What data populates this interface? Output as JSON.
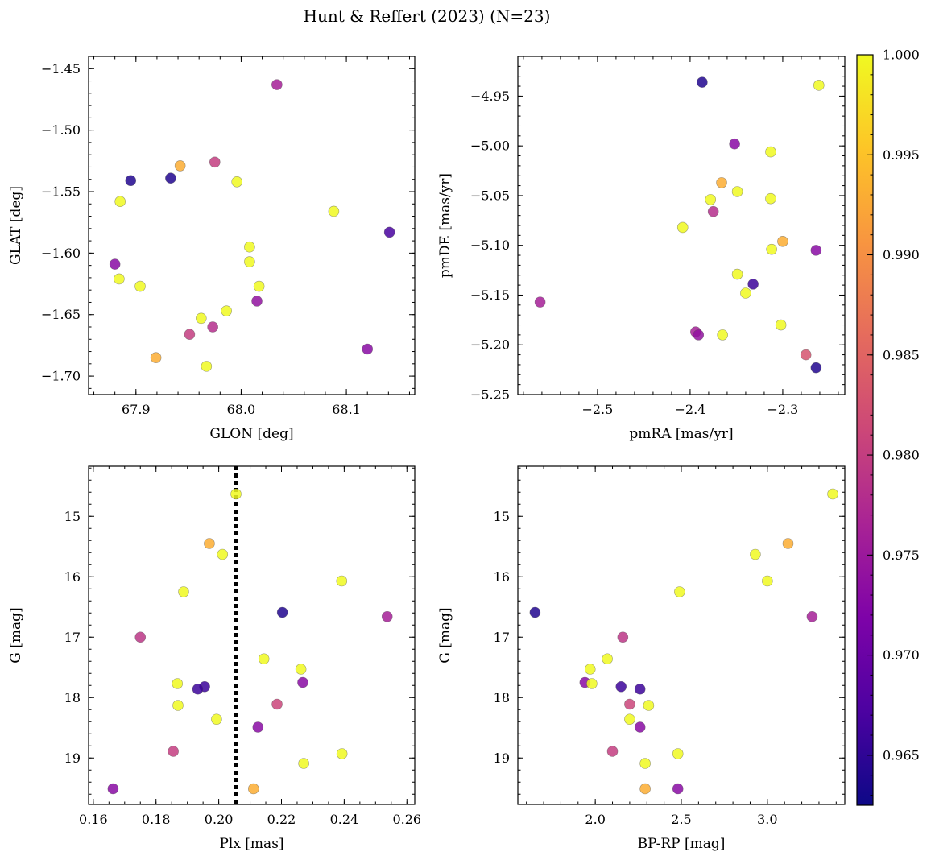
{
  "title": "Hunt & Reffert (2023) (N=23)",
  "colorbar": {
    "min": 0.9625,
    "max": 1.0,
    "ticks": [
      0.965,
      0.97,
      0.975,
      0.98,
      0.985,
      0.99,
      0.995,
      1.0
    ],
    "tick_labels": [
      "0.965",
      "0.970",
      "0.975",
      "0.980",
      "0.985",
      "0.990",
      "0.995",
      "1.000"
    ],
    "colormap": "plasma"
  },
  "chart_data": [
    {
      "type": "scatter",
      "id": "glon-glat",
      "xlabel": "GLON [deg]",
      "ylabel": "GLAT [deg]",
      "xlim": [
        67.855,
        68.165
      ],
      "ylim": [
        -1.715,
        -1.44
      ],
      "invert_y": false,
      "xticks": [
        67.9,
        68.0,
        68.1
      ],
      "xtick_labels": [
        "67.9",
        "68.0",
        "68.1"
      ],
      "yticks": [
        -1.45,
        -1.5,
        -1.55,
        -1.6,
        -1.65,
        -1.7
      ],
      "ytick_labels": [
        "−1.45",
        "−1.50",
        "−1.55",
        "−1.60",
        "−1.65",
        "−1.70"
      ],
      "xminor": 0.02,
      "yminor": 0.01,
      "points": [
        {
          "x": 68.034,
          "y": -1.463,
          "c": 0.976
        },
        {
          "x": 67.942,
          "y": -1.529,
          "c": 0.993
        },
        {
          "x": 67.975,
          "y": -1.526,
          "c": 0.98
        },
        {
          "x": 67.895,
          "y": -1.541,
          "c": 0.964
        },
        {
          "x": 67.933,
          "y": -1.539,
          "c": 0.964
        },
        {
          "x": 67.996,
          "y": -1.542,
          "c": 1.0
        },
        {
          "x": 67.885,
          "y": -1.558,
          "c": 1.0
        },
        {
          "x": 68.088,
          "y": -1.566,
          "c": 1.0
        },
        {
          "x": 68.141,
          "y": -1.583,
          "c": 0.967
        },
        {
          "x": 68.008,
          "y": -1.595,
          "c": 1.0
        },
        {
          "x": 67.88,
          "y": -1.609,
          "c": 0.973
        },
        {
          "x": 68.008,
          "y": -1.607,
          "c": 1.0
        },
        {
          "x": 67.884,
          "y": -1.621,
          "c": 1.0
        },
        {
          "x": 67.904,
          "y": -1.627,
          "c": 1.0
        },
        {
          "x": 68.017,
          "y": -1.627,
          "c": 1.0
        },
        {
          "x": 68.015,
          "y": -1.639,
          "c": 0.974
        },
        {
          "x": 67.986,
          "y": -1.647,
          "c": 1.0
        },
        {
          "x": 67.962,
          "y": -1.653,
          "c": 1.0
        },
        {
          "x": 67.973,
          "y": -1.66,
          "c": 0.978
        },
        {
          "x": 67.951,
          "y": -1.666,
          "c": 0.98
        },
        {
          "x": 68.12,
          "y": -1.678,
          "c": 0.973
        },
        {
          "x": 67.919,
          "y": -1.685,
          "c": 0.993
        },
        {
          "x": 67.967,
          "y": -1.692,
          "c": 1.0
        }
      ]
    },
    {
      "type": "scatter",
      "id": "pmra-pmde",
      "xlabel": "pmRA [mas/yr]",
      "ylabel": "pmDE [mas/yr]",
      "xlim": [
        -2.586,
        -2.233
      ],
      "ylim": [
        -5.25,
        -4.91
      ],
      "invert_y": false,
      "xticks": [
        -2.5,
        -2.4,
        -2.3
      ],
      "xtick_labels": [
        "−2.5",
        "−2.4",
        "−2.3"
      ],
      "yticks": [
        -4.95,
        -5.0,
        -5.05,
        -5.1,
        -5.15,
        -5.2,
        -5.25
      ],
      "ytick_labels": [
        "−4.95",
        "−5.00",
        "−5.05",
        "−5.10",
        "−5.15",
        "−5.20",
        "−5.25"
      ],
      "xminor": 0.02,
      "yminor": 0.01,
      "points": [
        {
          "x": -2.387,
          "y": -4.936,
          "c": 0.964
        },
        {
          "x": -2.261,
          "y": -4.939,
          "c": 1.0
        },
        {
          "x": -2.352,
          "y": -4.998,
          "c": 0.973
        },
        {
          "x": -2.313,
          "y": -5.006,
          "c": 1.0
        },
        {
          "x": -2.366,
          "y": -5.037,
          "c": 0.993
        },
        {
          "x": -2.349,
          "y": -5.046,
          "c": 1.0
        },
        {
          "x": -2.378,
          "y": -5.054,
          "c": 1.0
        },
        {
          "x": -2.313,
          "y": -5.053,
          "c": 1.0
        },
        {
          "x": -2.375,
          "y": -5.066,
          "c": 0.978
        },
        {
          "x": -2.408,
          "y": -5.082,
          "c": 1.0
        },
        {
          "x": -2.3,
          "y": -5.096,
          "c": 0.993
        },
        {
          "x": -2.312,
          "y": -5.104,
          "c": 1.0
        },
        {
          "x": -2.264,
          "y": -5.105,
          "c": 0.973
        },
        {
          "x": -2.349,
          "y": -5.129,
          "c": 1.0
        },
        {
          "x": -2.332,
          "y": -5.139,
          "c": 0.966
        },
        {
          "x": -2.34,
          "y": -5.148,
          "c": 1.0
        },
        {
          "x": -2.562,
          "y": -5.157,
          "c": 0.976
        },
        {
          "x": -2.302,
          "y": -5.18,
          "c": 1.0
        },
        {
          "x": -2.394,
          "y": -5.187,
          "c": 0.976
        },
        {
          "x": -2.391,
          "y": -5.19,
          "c": 0.974
        },
        {
          "x": -2.365,
          "y": -5.19,
          "c": 1.0
        },
        {
          "x": -2.275,
          "y": -5.21,
          "c": 0.983
        },
        {
          "x": -2.264,
          "y": -5.223,
          "c": 0.964
        }
      ]
    },
    {
      "type": "scatter",
      "id": "plx-g",
      "xlabel": "Plx [mas]",
      "ylabel": "G [mag]",
      "xlim": [
        0.1585,
        0.2625
      ],
      "ylim": [
        14.17,
        19.77
      ],
      "invert_y": true,
      "xticks": [
        0.16,
        0.18,
        0.2,
        0.22,
        0.24,
        0.26
      ],
      "xtick_labels": [
        "0.16",
        "0.18",
        "0.20",
        "0.22",
        "0.24",
        "0.26"
      ],
      "yticks": [
        15,
        16,
        17,
        18,
        19
      ],
      "ytick_labels": [
        "15",
        "16",
        "17",
        "18",
        "19"
      ],
      "xminor": 0.005,
      "yminor": 0.2,
      "vline": {
        "x": 0.2055
      },
      "points": [
        {
          "x": 0.2055,
          "y": 14.63,
          "c": 1.0
        },
        {
          "x": 0.197,
          "y": 15.45,
          "c": 0.993
        },
        {
          "x": 0.2012,
          "y": 15.63,
          "c": 1.0
        },
        {
          "x": 0.2392,
          "y": 16.07,
          "c": 1.0
        },
        {
          "x": 0.1888,
          "y": 16.25,
          "c": 1.0
        },
        {
          "x": 0.2203,
          "y": 16.59,
          "c": 0.964
        },
        {
          "x": 0.2537,
          "y": 16.66,
          "c": 0.976
        },
        {
          "x": 0.175,
          "y": 17.0,
          "c": 0.979
        },
        {
          "x": 0.2144,
          "y": 17.36,
          "c": 1.0
        },
        {
          "x": 0.2262,
          "y": 17.53,
          "c": 1.0
        },
        {
          "x": 0.1868,
          "y": 17.77,
          "c": 1.0
        },
        {
          "x": 0.2268,
          "y": 17.75,
          "c": 0.973
        },
        {
          "x": 0.1955,
          "y": 17.82,
          "c": 0.966
        },
        {
          "x": 0.1933,
          "y": 17.86,
          "c": 0.966
        },
        {
          "x": 0.2186,
          "y": 18.11,
          "c": 0.981
        },
        {
          "x": 0.187,
          "y": 18.13,
          "c": 1.0
        },
        {
          "x": 0.1993,
          "y": 18.36,
          "c": 1.0
        },
        {
          "x": 0.2125,
          "y": 18.49,
          "c": 0.973
        },
        {
          "x": 0.1855,
          "y": 18.89,
          "c": 0.98
        },
        {
          "x": 0.2393,
          "y": 18.93,
          "c": 1.0
        },
        {
          "x": 0.2271,
          "y": 19.09,
          "c": 1.0
        },
        {
          "x": 0.1663,
          "y": 19.51,
          "c": 0.973
        },
        {
          "x": 0.2111,
          "y": 19.51,
          "c": 0.993
        }
      ]
    },
    {
      "type": "scatter",
      "id": "bprp-g",
      "xlabel": "BP-RP [mag]",
      "ylabel": "G [mag]",
      "xlim": [
        1.55,
        3.45
      ],
      "ylim": [
        14.17,
        19.77
      ],
      "invert_y": true,
      "xticks": [
        2.0,
        2.5,
        3.0
      ],
      "xtick_labels": [
        "2.0",
        "2.5",
        "3.0"
      ],
      "yticks": [
        15,
        16,
        17,
        18,
        19
      ],
      "ytick_labels": [
        "15",
        "16",
        "17",
        "18",
        "19"
      ],
      "xminor": 0.1,
      "yminor": 0.2,
      "points": [
        {
          "x": 3.38,
          "y": 14.63,
          "c": 1.0
        },
        {
          "x": 3.12,
          "y": 15.45,
          "c": 0.993
        },
        {
          "x": 2.93,
          "y": 15.63,
          "c": 1.0
        },
        {
          "x": 3.0,
          "y": 16.07,
          "c": 1.0
        },
        {
          "x": 2.49,
          "y": 16.25,
          "c": 1.0
        },
        {
          "x": 1.65,
          "y": 16.59,
          "c": 0.964
        },
        {
          "x": 3.26,
          "y": 16.66,
          "c": 0.976
        },
        {
          "x": 2.16,
          "y": 17.0,
          "c": 0.979
        },
        {
          "x": 2.07,
          "y": 17.36,
          "c": 1.0
        },
        {
          "x": 1.97,
          "y": 17.53,
          "c": 1.0
        },
        {
          "x": 1.94,
          "y": 17.75,
          "c": 0.973
        },
        {
          "x": 1.98,
          "y": 17.77,
          "c": 1.0
        },
        {
          "x": 2.15,
          "y": 17.82,
          "c": 0.966
        },
        {
          "x": 2.26,
          "y": 17.86,
          "c": 0.966
        },
        {
          "x": 2.2,
          "y": 18.11,
          "c": 0.981
        },
        {
          "x": 2.31,
          "y": 18.13,
          "c": 1.0
        },
        {
          "x": 2.2,
          "y": 18.36,
          "c": 1.0
        },
        {
          "x": 2.26,
          "y": 18.49,
          "c": 0.973
        },
        {
          "x": 2.1,
          "y": 18.89,
          "c": 0.98
        },
        {
          "x": 2.48,
          "y": 18.93,
          "c": 1.0
        },
        {
          "x": 2.29,
          "y": 19.09,
          "c": 1.0
        },
        {
          "x": 2.48,
          "y": 19.51,
          "c": 0.973
        },
        {
          "x": 2.29,
          "y": 19.51,
          "c": 0.993
        }
      ]
    }
  ]
}
